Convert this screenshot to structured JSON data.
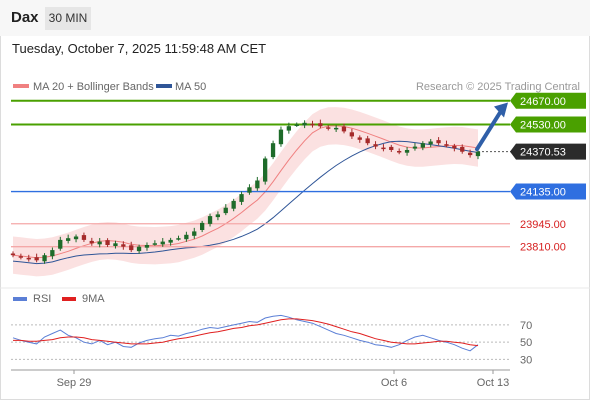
{
  "header": {
    "symbol": "Dax",
    "timeframe": "30 MIN"
  },
  "timestamp": "Tuesday, October 7, 2025 11:59:48 AM CET",
  "legend": {
    "ma20": {
      "label": "MA 20 + Bollinger Bands",
      "color": "#f08080"
    },
    "ma50": {
      "label": "MA 50",
      "color": "#2f5597"
    },
    "credit": "Research © 2025 Trading Central"
  },
  "rsi_legend": {
    "rsi": {
      "label": "RSI",
      "color": "#5b7fd6"
    },
    "ma": {
      "label": "9MA",
      "color": "#e02020"
    }
  },
  "colors": {
    "support_line": "#2f6fe0",
    "resistance_line": "#4aa000",
    "target_line": "#f4a8a8",
    "arrow": "#2f5fa8",
    "up_candle": "#1e6b2a",
    "down_candle": "#a52a2a"
  },
  "chart_data": {
    "type": "candlestick",
    "ylim": [
      23590,
      24710
    ],
    "levels": [
      {
        "value": 24670,
        "label": "24670.00",
        "style": "resistance"
      },
      {
        "value": 24530,
        "label": "24530.00",
        "style": "resistance"
      },
      {
        "value": 24370.53,
        "label": "24370.53",
        "style": "last"
      },
      {
        "value": 24135,
        "label": "24135.00",
        "style": "pivot"
      },
      {
        "value": 23945,
        "label": "23945.00",
        "style": "target"
      },
      {
        "value": 23810,
        "label": "23810.00",
        "style": "target"
      }
    ],
    "x_ticks": [
      "Sep 29",
      "Oct 6",
      "Oct 13"
    ],
    "close_path": [
      23760,
      23750,
      23740,
      23730,
      23760,
      23790,
      23850,
      23860,
      23870,
      23850,
      23830,
      23840,
      23820,
      23830,
      23810,
      23790,
      23810,
      23820,
      23830,
      23840,
      23850,
      23860,
      23880,
      23900,
      23950,
      23990,
      24000,
      24040,
      24080,
      24120,
      24160,
      24200,
      24330,
      24420,
      24500,
      24520,
      24530,
      24540,
      24530,
      24520,
      24510,
      24510,
      24490,
      24460,
      24440,
      24420,
      24400,
      24390,
      24380,
      24370,
      24380,
      24400,
      24420,
      24430,
      24420,
      24410,
      24390,
      24370,
      24350,
      24370
    ],
    "rsi": {
      "levels": [
        70,
        50,
        30
      ],
      "ylim": [
        20,
        85
      ],
      "rsi_path": [
        55,
        52,
        50,
        48,
        56,
        60,
        64,
        58,
        55,
        50,
        48,
        52,
        47,
        50,
        45,
        44,
        49,
        52,
        54,
        55,
        58,
        57,
        60,
        62,
        65,
        67,
        66,
        68,
        70,
        72,
        74,
        73,
        78,
        80,
        81,
        79,
        76,
        74,
        72,
        68,
        64,
        60,
        58,
        55,
        52,
        50,
        47,
        46,
        44,
        47,
        52,
        56,
        58,
        55,
        52,
        50,
        47,
        43,
        40,
        47
      ],
      "ma_path": [
        52,
        52,
        51,
        51,
        52,
        53,
        55,
        56,
        56,
        55,
        53,
        52,
        51,
        50,
        49,
        48,
        48,
        48,
        49,
        50,
        52,
        54,
        55,
        57,
        59,
        61,
        62,
        64,
        66,
        67,
        69,
        70,
        72,
        74,
        76,
        77,
        77,
        76,
        75,
        73,
        71,
        68,
        65,
        62,
        60,
        57,
        54,
        52,
        50,
        49,
        48,
        48,
        49,
        50,
        51,
        51,
        50,
        49,
        47,
        46
      ]
    }
  }
}
